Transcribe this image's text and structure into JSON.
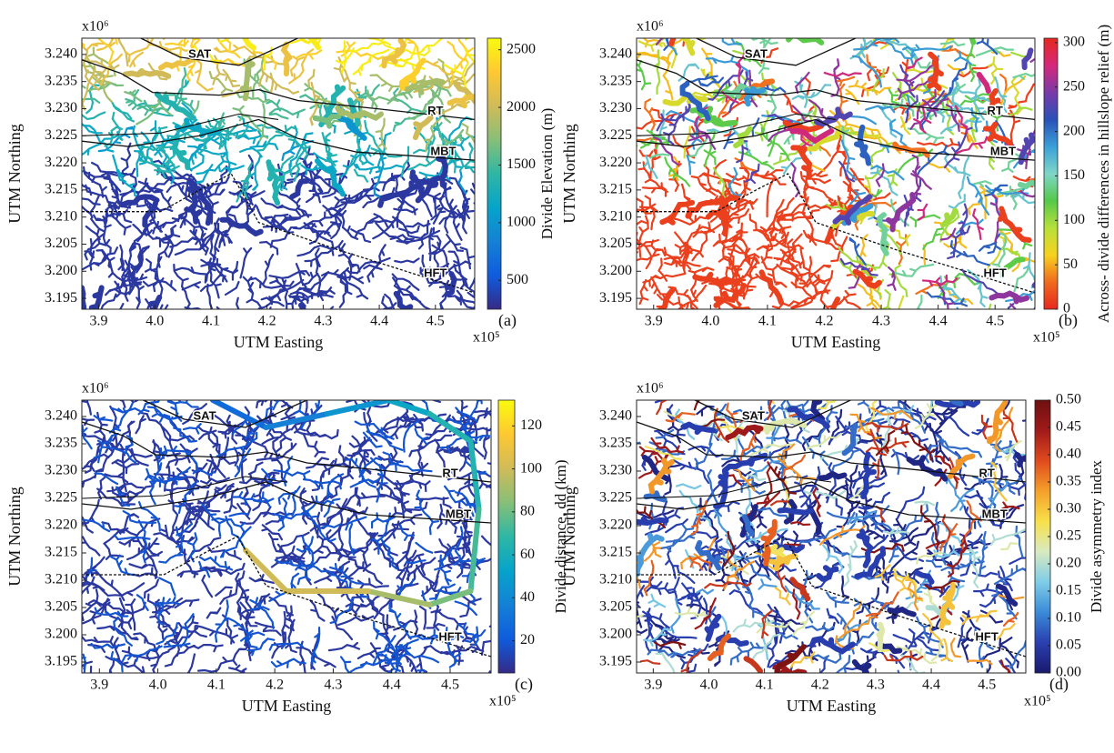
{
  "chart_data": [
    {
      "type": "map",
      "panel_label": "(a)",
      "xlabel": "UTM Easting",
      "ylabel": "UTM Northing",
      "x_multiplier": "x10⁵",
      "y_multiplier": "x10⁶",
      "xlim": [
        3.87,
        4.57
      ],
      "xticks": [
        3.9,
        {
          "value": 4,
          "label": "4.0"
        },
        4.1,
        4.2,
        4.3,
        4.4,
        4.5
      ],
      "ylim": [
        3.193,
        3.243
      ],
      "yticks": [
        {
          "value": 3.195,
          "label": "3.195"
        },
        {
          "value": 3.2,
          "label": "3.200"
        },
        {
          "value": 3.205,
          "label": "3.205"
        },
        {
          "value": 3.21,
          "label": "3.210"
        },
        {
          "value": 3.215,
          "label": "3.215"
        },
        {
          "value": 3.22,
          "label": "3.220"
        },
        {
          "value": 3.225,
          "label": "3.225"
        },
        {
          "value": 3.23,
          "label": "3.230"
        },
        {
          "value": 3.235,
          "label": "3.235"
        },
        {
          "value": 3.24,
          "label": "3.240"
        }
      ],
      "fault_labels": [
        "SAT",
        "RT",
        "MBT",
        "HFT"
      ],
      "colorbar": {
        "label": "Divide Elevation (m)",
        "lim": [
          250,
          2600
        ],
        "ticks": [
          500,
          1000,
          1500,
          2000,
          2500
        ],
        "colormap": [
          "#352a87",
          "#0f5cdd",
          "#1481d6",
          "#06a4ca",
          "#2eb7a4",
          "#87bf77",
          "#d1bb59",
          "#fec832",
          "#f9fb0e"
        ]
      }
    },
    {
      "type": "map",
      "panel_label": "(b)",
      "xlabel": "UTM Easting",
      "ylabel": "UTM Northing",
      "x_multiplier": "x10⁵",
      "y_multiplier": "x10⁶",
      "xlim": [
        3.87,
        4.57
      ],
      "xticks": [
        3.9,
        {
          "value": 4,
          "label": "4.0"
        },
        4.1,
        4.2,
        4.3,
        4.4,
        4.5
      ],
      "ylim": [
        3.193,
        3.243
      ],
      "yticks": [
        {
          "value": 3.195,
          "label": "3.195"
        },
        {
          "value": 3.2,
          "label": "3.200"
        },
        {
          "value": 3.205,
          "label": "3.205"
        },
        {
          "value": 3.21,
          "label": "3.210"
        },
        {
          "value": 3.215,
          "label": "3.215"
        },
        {
          "value": 3.22,
          "label": "3.220"
        },
        {
          "value": 3.225,
          "label": "3.225"
        },
        {
          "value": 3.23,
          "label": "3.230"
        },
        {
          "value": 3.235,
          "label": "3.235"
        },
        {
          "value": 3.24,
          "label": "3.240"
        }
      ],
      "fault_labels": [
        "SAT",
        "RT",
        "MBT",
        "HFT"
      ],
      "colorbar": {
        "label": "Across- divide differences in hillslope relief (m)",
        "lim": [
          0,
          305
        ],
        "ticks": [
          0,
          50,
          100,
          150,
          200,
          250,
          300
        ],
        "colormap": [
          "#e8281e",
          "#f06a1e",
          "#f7d21e",
          "#b7e03a",
          "#55c94a",
          "#7fd6c8",
          "#3aa0d8",
          "#2a50b8",
          "#7a3aa8",
          "#d6287a",
          "#e8281e"
        ]
      }
    },
    {
      "type": "map",
      "panel_label": "(c)",
      "xlabel": "UTM Easting",
      "ylabel": "UTM Northing",
      "x_multiplier": "x10⁵",
      "y_multiplier": "x10⁶",
      "xlim": [
        3.87,
        4.57
      ],
      "xticks": [
        3.9,
        {
          "value": 4,
          "label": "4.0"
        },
        4.1,
        4.2,
        4.3,
        4.4,
        4.5
      ],
      "ylim": [
        3.193,
        3.243
      ],
      "yticks": [
        {
          "value": 3.195,
          "label": "3.195"
        },
        {
          "value": 3.2,
          "label": "3.200"
        },
        {
          "value": 3.205,
          "label": "3.205"
        },
        {
          "value": 3.21,
          "label": "3.210"
        },
        {
          "value": 3.215,
          "label": "3.215"
        },
        {
          "value": 3.22,
          "label": "3.220"
        },
        {
          "value": 3.225,
          "label": "3.225"
        },
        {
          "value": 3.23,
          "label": "3.230"
        },
        {
          "value": 3.235,
          "label": "3.235"
        },
        {
          "value": 3.24,
          "label": "3.240"
        }
      ],
      "fault_labels": [
        "SAT",
        "RT",
        "MBT",
        "HFT"
      ],
      "colorbar": {
        "label": "Divide distance, dd (km)",
        "lim": [
          5,
          132
        ],
        "ticks": [
          20,
          40,
          60,
          80,
          100,
          120
        ],
        "colormap": [
          "#352a87",
          "#0f5cdd",
          "#1481d6",
          "#06a4ca",
          "#2eb7a4",
          "#87bf77",
          "#d1bb59",
          "#fec832",
          "#f9fb0e"
        ]
      }
    },
    {
      "type": "map",
      "panel_label": "(d)",
      "xlabel": "UTM Easting",
      "ylabel": "UTM Northing",
      "x_multiplier": "x10⁵",
      "y_multiplier": "x10⁶",
      "xlim": [
        3.87,
        4.57
      ],
      "xticks": [
        3.9,
        {
          "value": 4,
          "label": "4.0"
        },
        4.1,
        4.2,
        4.3,
        4.4,
        4.5
      ],
      "ylim": [
        3.193,
        3.243
      ],
      "yticks": [
        {
          "value": 3.195,
          "label": "3.195"
        },
        {
          "value": 3.2,
          "label": "3.200"
        },
        {
          "value": 3.205,
          "label": "3.205"
        },
        {
          "value": 3.21,
          "label": "3.210"
        },
        {
          "value": 3.215,
          "label": "3.215"
        },
        {
          "value": 3.22,
          "label": "3.220"
        },
        {
          "value": 3.225,
          "label": "3.225"
        },
        {
          "value": 3.23,
          "label": "3.230"
        },
        {
          "value": 3.235,
          "label": "3.235"
        },
        {
          "value": 3.24,
          "label": "3.240"
        }
      ],
      "fault_labels": [
        "SAT",
        "RT",
        "MBT",
        "HFT"
      ],
      "colorbar": {
        "label": "Divide asymmetry index",
        "lim": [
          0,
          0.5
        ],
        "ticks": [
          {
            "value": 0,
            "label": "0.00"
          },
          {
            "value": 0.05,
            "label": "0.05"
          },
          {
            "value": 0.1,
            "label": "0.10"
          },
          {
            "value": 0.15,
            "label": "0.15"
          },
          {
            "value": 0.2,
            "label": "0.20"
          },
          {
            "value": 0.25,
            "label": "0.25"
          },
          {
            "value": 0.3,
            "label": "0.30"
          },
          {
            "value": 0.35,
            "label": "0.35"
          },
          {
            "value": 0.4,
            "label": "0.40"
          },
          {
            "value": 0.45,
            "label": "0.45"
          },
          {
            "value": 0.5,
            "label": "0.50"
          }
        ],
        "colormap": [
          "#1a1a6e",
          "#2a3fb0",
          "#3a8ad8",
          "#7fcde8",
          "#d8eac0",
          "#f7e04a",
          "#f4a02a",
          "#e04a1e",
          "#a01a1a",
          "#6e1010"
        ]
      }
    }
  ]
}
